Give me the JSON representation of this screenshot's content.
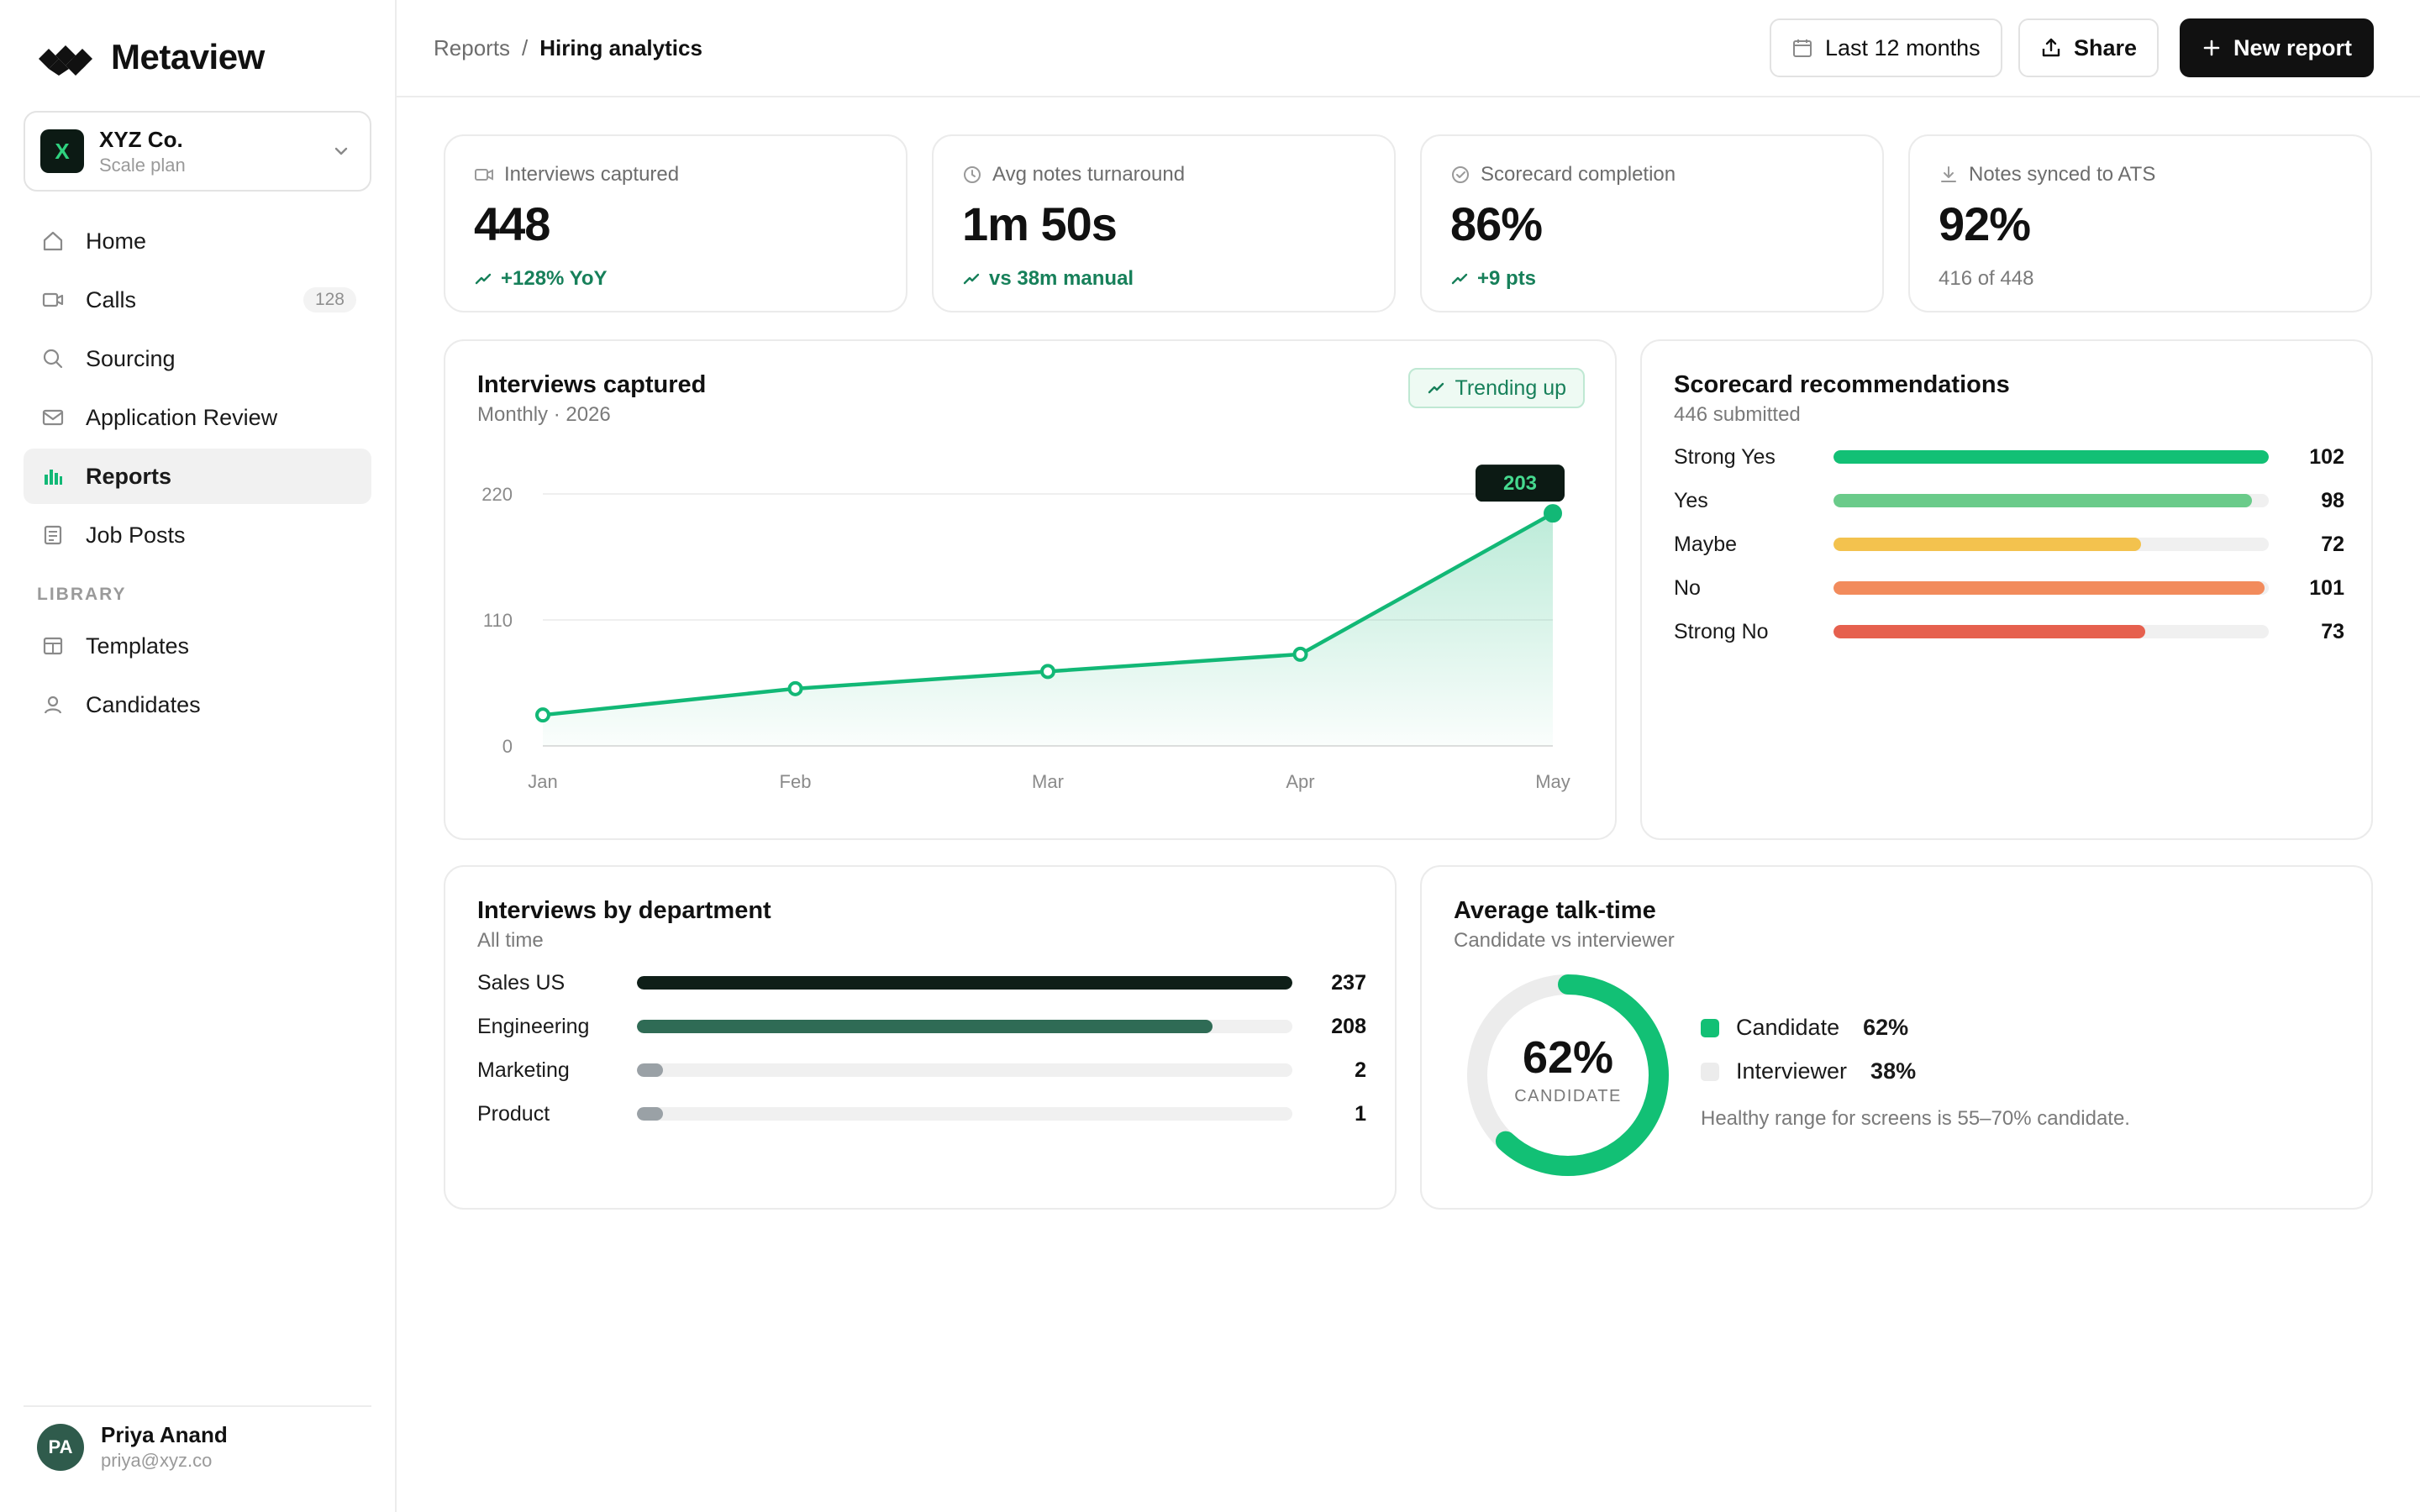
{
  "app": {
    "name": "Metaview"
  },
  "org": {
    "name": "XYZ Co.",
    "plan": "Scale plan",
    "badge": "X"
  },
  "nav": {
    "items": [
      {
        "label": "Home",
        "icon": "home-icon"
      },
      {
        "label": "Calls",
        "icon": "video-icon",
        "count": "128"
      },
      {
        "label": "Sourcing",
        "icon": "search-icon"
      },
      {
        "label": "Application Review",
        "icon": "mail-icon"
      },
      {
        "label": "Reports",
        "icon": "bar-chart-icon",
        "active": true
      },
      {
        "label": "Job Posts",
        "icon": "document-icon"
      }
    ],
    "library_label": "LIBRARY",
    "library": [
      {
        "label": "Templates",
        "icon": "template-icon"
      },
      {
        "label": "Candidates",
        "icon": "person-icon"
      }
    ]
  },
  "user": {
    "initials": "PA",
    "name": "Priya Anand",
    "email": "priya@xyz.co"
  },
  "header": {
    "breadcrumb_root": "Reports",
    "breadcrumb_sep": "/",
    "breadcrumb_current": "Hiring analytics",
    "range_label": "Last 12 months",
    "share_label": "Share",
    "new_report_label": "New report"
  },
  "kpis": [
    {
      "label": "Interviews captured",
      "value": "448",
      "delta": "+128% YoY",
      "icon": "video-icon"
    },
    {
      "label": "Avg notes turnaround",
      "value": "1m 50s",
      "delta": "vs 38m manual",
      "icon": "clock-icon"
    },
    {
      "label": "Scorecard completion",
      "value": "86%",
      "delta": "+9 pts",
      "icon": "check-circle-icon"
    },
    {
      "label": "Notes synced to ATS",
      "value": "92%",
      "delta": "416 of 448",
      "icon": "download-icon"
    }
  ],
  "interviews_chart": {
    "title": "Interviews captured",
    "subtitle": "Monthly · 2026",
    "badge": "Trending up"
  },
  "chart_data": {
    "type": "area",
    "categories": [
      "Jan",
      "Feb",
      "Mar",
      "Apr",
      "May"
    ],
    "series": [
      {
        "values": [
          27,
          50,
          65,
          80,
          203
        ]
      }
    ],
    "y_ticks": [
      "220",
      "110",
      "0"
    ],
    "ylim": [
      0,
      220
    ],
    "highlight_label": "203",
    "grid": true,
    "colors": {
      "line": "#12b876",
      "fill": "#12b876",
      "highlight": "#0c1a14"
    }
  },
  "scorecard": {
    "title": "Scorecard recommendations",
    "subtitle": "446 submitted",
    "max": 102,
    "rows": [
      {
        "label": "Strong Yes",
        "value": "102",
        "num": 102,
        "color": "#12c075"
      },
      {
        "label": "Yes",
        "value": "98",
        "num": 98,
        "color": "#6acb8a"
      },
      {
        "label": "Maybe",
        "value": "72",
        "num": 72,
        "color": "#f3c24e"
      },
      {
        "label": "No",
        "value": "101",
        "num": 101,
        "color": "#f28b5c"
      },
      {
        "label": "Strong No",
        "value": "73",
        "num": 73,
        "color": "#e6604e"
      }
    ]
  },
  "departments": {
    "title": "Interviews by department",
    "subtitle": "All time",
    "max": 237,
    "rows": [
      {
        "label": "Sales US",
        "value": "237",
        "num": 237,
        "color": "#0f1f18"
      },
      {
        "label": "Engineering",
        "value": "208",
        "num": 208,
        "color": "#2f6b55"
      },
      {
        "label": "Marketing",
        "value": "2",
        "num": 2,
        "color": "#9aa1a6"
      },
      {
        "label": "Product",
        "value": "1",
        "num": 1,
        "color": "#9aa1a6"
      }
    ]
  },
  "talk_time": {
    "title": "Average talk-time",
    "subtitle": "Candidate vs interviewer",
    "center_value": "62%",
    "center_label": "CANDIDATE",
    "candidate_fraction": 0.62,
    "legend": [
      {
        "label": "Candidate",
        "pct": "62%",
        "color": "#12c075"
      },
      {
        "label": "Interviewer",
        "pct": "38%",
        "color": "#ececec"
      }
    ],
    "hint": "Healthy range for screens is 55–70% candidate."
  }
}
